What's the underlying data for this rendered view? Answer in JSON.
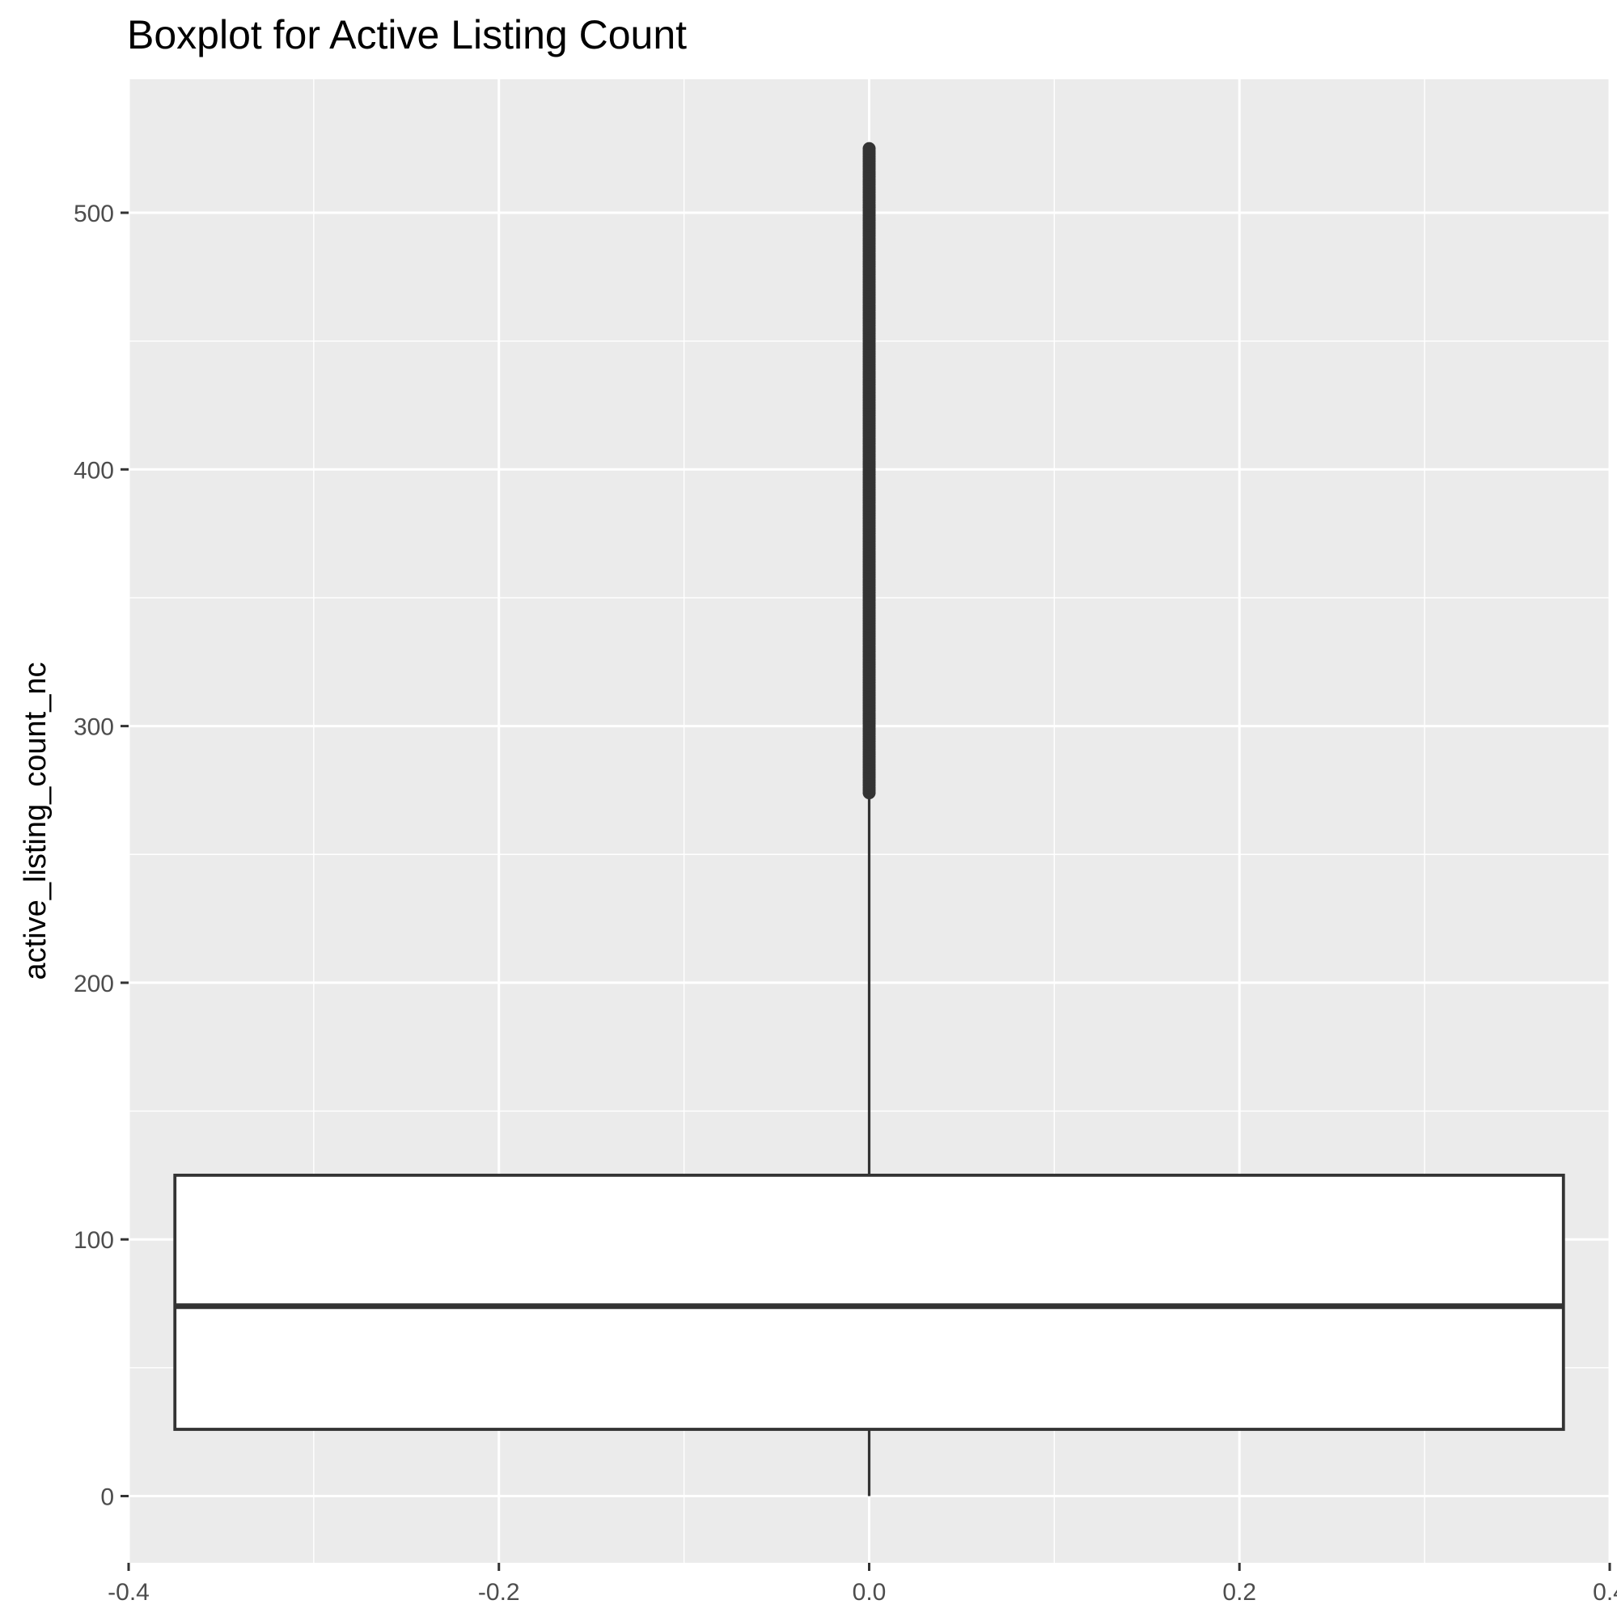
{
  "chart_data": {
    "type": "boxplot",
    "title": "Boxplot for Active Listing Count",
    "xlabel": "",
    "ylabel": "active_listing_count_nc",
    "xlim": [
      -0.4,
      0.4
    ],
    "ylim": [
      -26,
      552
    ],
    "x_ticks": [
      "-0.4",
      "-0.2",
      "0.0",
      "0.2",
      "0.4"
    ],
    "x_tick_values": [
      -0.4,
      -0.2,
      0.0,
      0.2,
      0.4
    ],
    "y_ticks": [
      "0",
      "100",
      "200",
      "300",
      "400",
      "500"
    ],
    "y_tick_values": [
      0,
      100,
      200,
      300,
      400,
      500
    ],
    "grid": true,
    "box": {
      "x_left": -0.375,
      "x_right": 0.375,
      "x_center": 0.0,
      "whisker_low": 0,
      "q1": 26,
      "median": 74,
      "q3": 125,
      "whisker_high": 273,
      "outlier_min": 274,
      "outlier_max": 525
    },
    "colors": {
      "panel": "#ebebeb",
      "grid": "#ffffff",
      "box_fill": "#ffffff",
      "box_stroke": "#333333"
    }
  }
}
